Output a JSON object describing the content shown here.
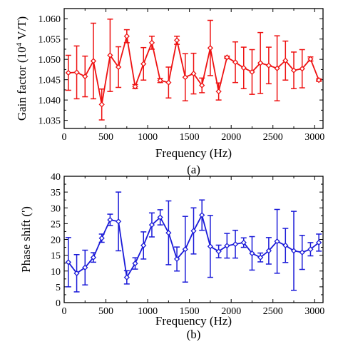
{
  "chart_data": [
    {
      "type": "line",
      "caption": "(a)",
      "xlabel": "Frequency (Hz)",
      "ylabel_main": "Gain factor (10",
      "ylabel_sup": "4",
      "ylabel_tail": " V/T)",
      "xlim": [
        0,
        3100
      ],
      "ylim": [
        1.033,
        1.0625
      ],
      "xticks": [
        0,
        500,
        1000,
        1500,
        2000,
        2500,
        3000
      ],
      "yticks": [
        1.035,
        1.04,
        1.045,
        1.05,
        1.055,
        1.06
      ],
      "ytick_labels": [
        "1.035",
        "1.040",
        "1.045",
        "1.050",
        "1.055",
        "1.060"
      ],
      "series": [
        {
          "color": "#ee1111",
          "marker": "diamond",
          "x": [
            50,
            150,
            250,
            350,
            450,
            550,
            650,
            750,
            850,
            950,
            1050,
            1150,
            1250,
            1350,
            1450,
            1550,
            1650,
            1750,
            1850,
            1950,
            2050,
            2150,
            2250,
            2350,
            2450,
            2550,
            2650,
            2750,
            2850,
            2950,
            3050
          ],
          "y": [
            1.0467,
            1.0468,
            1.0458,
            1.0496,
            1.0389,
            1.051,
            1.0481,
            1.0557,
            1.0433,
            1.0489,
            1.0541,
            1.0448,
            1.0443,
            1.0547,
            1.0456,
            1.0465,
            1.0436,
            1.0528,
            1.0421,
            1.0505,
            1.0493,
            1.0479,
            1.0469,
            1.0491,
            1.0485,
            1.0478,
            1.0497,
            1.0473,
            1.0477,
            1.0501,
            1.0449
          ],
          "err": [
            0.0043,
            0.0065,
            0.005,
            0.0093,
            0.0038,
            0.0089,
            0.005,
            0.0016,
            0.0005,
            0.004,
            0.0016,
            0.0005,
            0.0038,
            0.001,
            0.0058,
            0.005,
            0.0018,
            0.0068,
            0.0021,
            0.0003,
            0.005,
            0.0051,
            0.0055,
            0.0075,
            0.0045,
            0.008,
            0.0048,
            0.0045,
            0.0047,
            0.0005,
            0.0003
          ]
        }
      ]
    },
    {
      "type": "line",
      "caption": "(b)",
      "xlabel": "Frequency (Hz)",
      "ylabel": "Phase shift (')",
      "xlim": [
        0,
        3100
      ],
      "ylim": [
        0,
        40
      ],
      "xticks": [
        0,
        500,
        1000,
        1500,
        2000,
        2500,
        3000
      ],
      "yticks": [
        0,
        5,
        10,
        15,
        20,
        25,
        30,
        35,
        40
      ],
      "ytick_labels": [
        "0",
        "5",
        "10",
        "15",
        "20",
        "25",
        "30",
        "35",
        "40"
      ],
      "series": [
        {
          "color": "#1a1ad8",
          "marker": "diamond",
          "x": [
            50,
            150,
            250,
            350,
            450,
            550,
            650,
            750,
            850,
            950,
            1050,
            1150,
            1250,
            1350,
            1450,
            1550,
            1650,
            1750,
            1850,
            1950,
            2050,
            2150,
            2250,
            2350,
            2450,
            2550,
            2650,
            2750,
            2850,
            2950,
            3050
          ],
          "y": [
            12.8,
            9.3,
            11.1,
            14.3,
            20.4,
            26.2,
            25.7,
            8.0,
            12.4,
            18.1,
            24.6,
            27.0,
            22.1,
            13.8,
            16.9,
            22.7,
            27.7,
            17.8,
            16.2,
            18.0,
            18.5,
            19.0,
            15.6,
            14.3,
            16.4,
            19.4,
            18.1,
            16.4,
            15.9,
            16.9,
            19.0
          ],
          "err": [
            7.8,
            5.9,
            5.5,
            1.5,
            1.3,
            1.8,
            9.3,
            2.1,
            1.8,
            4.3,
            3.8,
            2.4,
            10.1,
            3.8,
            10.4,
            7.3,
            4.8,
            9.8,
            2.0,
            3.9,
            4.4,
            1.5,
            5.3,
            1.4,
            4.2,
            10.1,
            5.4,
            12.5,
            5.4,
            2.1,
            2.7
          ]
        }
      ]
    }
  ]
}
